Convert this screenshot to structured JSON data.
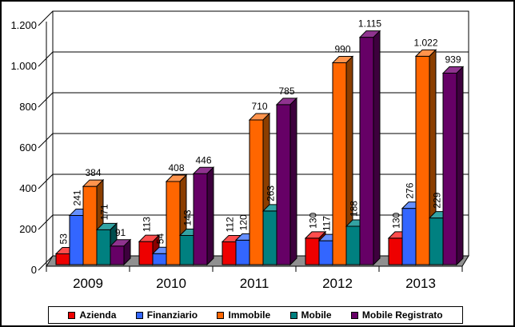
{
  "chart_data": {
    "type": "bar",
    "projection": "3d",
    "title": "",
    "xlabel": "",
    "ylabel": "",
    "grid": true,
    "legend_position": "bottom",
    "number_format": "italian",
    "categories": [
      "2009",
      "2010",
      "2011",
      "2012",
      "2013"
    ],
    "series": [
      {
        "name": "Azienda",
        "color": "#ee0000",
        "top_color": "#ff4d4d",
        "side_color": "#8b0000",
        "values": [
          53,
          113,
          112,
          130,
          130
        ],
        "labels": [
          "53",
          "113",
          "112",
          "130",
          "130"
        ],
        "label_orientation": "vertical"
      },
      {
        "name": "Finanziario",
        "color": "#3366ff",
        "top_color": "#6690ff",
        "side_color": "#1f3fa0",
        "values": [
          241,
          54,
          120,
          117,
          276
        ],
        "labels": [
          "241",
          "54",
          "120",
          "117",
          "276"
        ],
        "label_orientation": "vertical"
      },
      {
        "name": "Immobile",
        "color": "#ff6600",
        "top_color": "#ff944d",
        "side_color": "#8b3e00",
        "values": [
          384,
          408,
          710,
          990,
          1022
        ],
        "labels": [
          "384",
          "408",
          "710",
          "990",
          "1.022"
        ],
        "label_orientation": "horizontal"
      },
      {
        "name": "Mobile",
        "color": "#008080",
        "top_color": "#33a3a3",
        "side_color": "#004d4d",
        "values": [
          171,
          143,
          263,
          188,
          229
        ],
        "labels": [
          "171",
          "143",
          "263",
          "188",
          "229"
        ],
        "label_orientation": "vertical"
      },
      {
        "name": "Mobile Registrato",
        "color": "#660066",
        "top_color": "#8f338f",
        "side_color": "#3d003d",
        "values": [
          91,
          446,
          785,
          1115,
          939
        ],
        "labels": [
          "91",
          "446",
          "785",
          "1.115",
          "939"
        ],
        "label_orientation": "horizontal"
      }
    ],
    "y_axis": {
      "min": 0,
      "max": 1200,
      "step": 200,
      "tick_labels": [
        "1.200",
        "1.000",
        "800",
        "600",
        "400",
        "200",
        "0"
      ]
    },
    "floor_color": "#909090",
    "wall_color": "#ffffff",
    "gridline_color": "#000000"
  }
}
